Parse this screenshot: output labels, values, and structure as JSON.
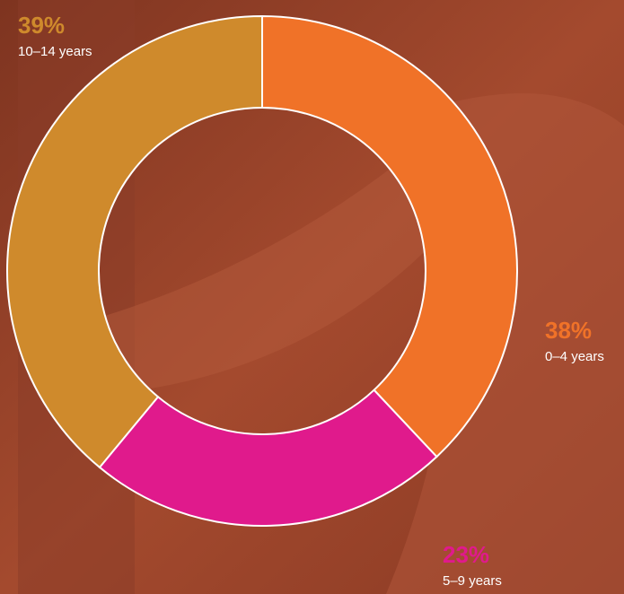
{
  "chart_data": {
    "type": "donut",
    "categories": [
      "0–4 years",
      "5–9 years",
      "10–14 years"
    ],
    "values": [
      38,
      23,
      39
    ],
    "value_labels": [
      "38%",
      "23%",
      "39%"
    ],
    "colors": [
      "#f07228",
      "#e01a8c",
      "#cf8a2c"
    ]
  }
}
